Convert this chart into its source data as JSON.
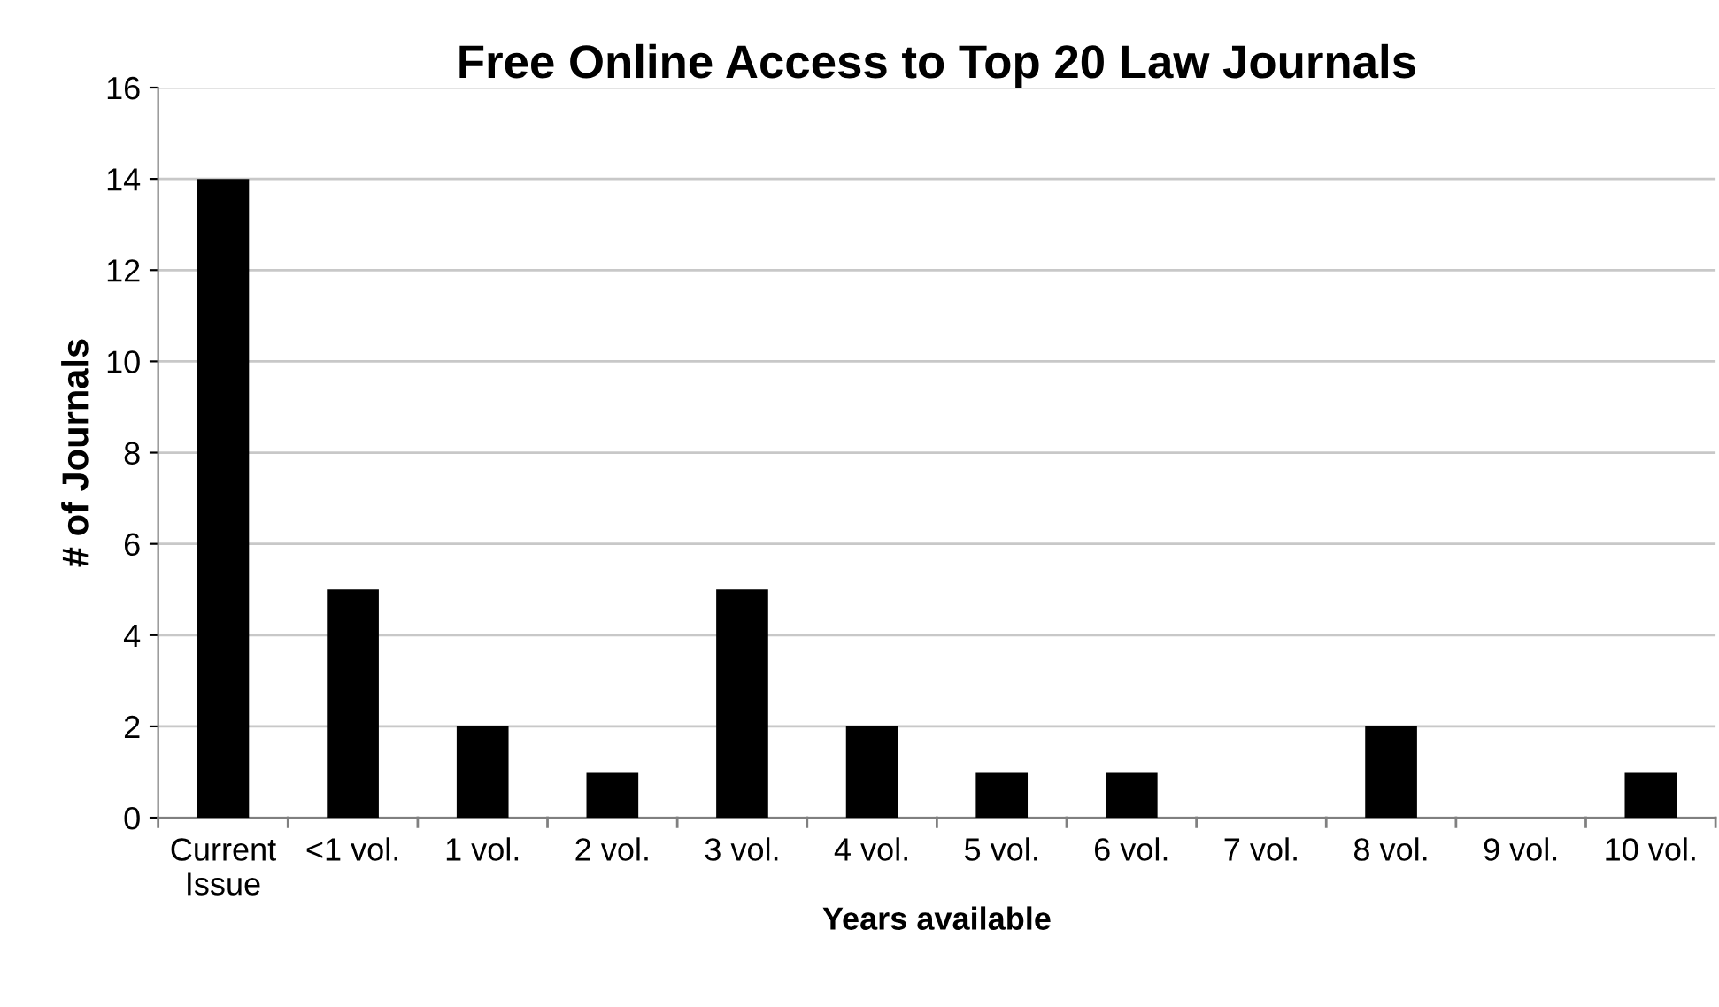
{
  "chart_data": {
    "type": "bar",
    "title": "Free Online Access to Top 20 Law Journals",
    "xlabel": "Years available",
    "ylabel": "# of Journals",
    "categories": [
      "Current\nIssue",
      "<1 vol.",
      "1 vol.",
      "2 vol.",
      "3 vol.",
      "4 vol.",
      "5 vol.",
      "6 vol.",
      "7 vol.",
      "8 vol.",
      "9 vol.",
      "10 vol."
    ],
    "values": [
      14,
      5,
      2,
      1,
      5,
      2,
      1,
      1,
      0,
      2,
      0,
      1
    ],
    "color": "#000000",
    "ylim": [
      0,
      16
    ],
    "yticks": [
      0,
      2,
      4,
      6,
      8,
      10,
      12,
      14,
      16
    ],
    "grid": "y",
    "legend": false
  }
}
